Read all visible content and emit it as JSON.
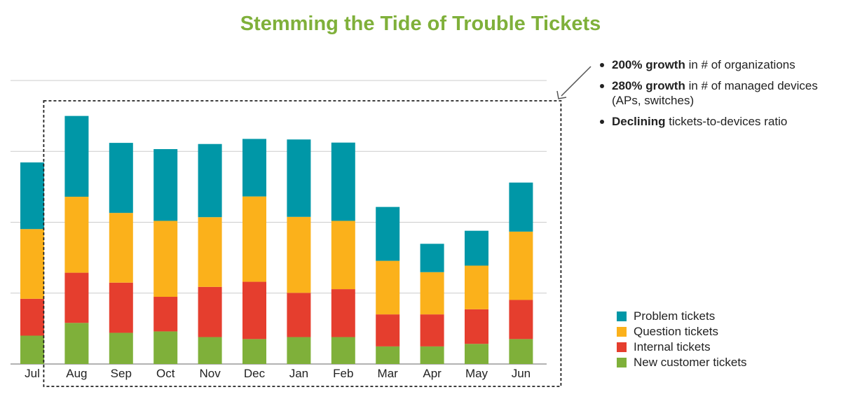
{
  "chart_data": {
    "type": "bar",
    "stacked": true,
    "title": "Stemming the Tide of Trouble Tickets",
    "xlabel": "",
    "ylabel": "",
    "ylim": [
      0,
      100
    ],
    "y_axis_labels_shown": false,
    "grid": true,
    "legend_position": "right",
    "categories": [
      "Jul",
      "Aug",
      "Sep",
      "Oct",
      "Nov",
      "Dec",
      "Jan",
      "Feb",
      "Mar",
      "Apr",
      "May",
      "Jun"
    ],
    "series": [
      {
        "name": "New customer tickets",
        "color": "#7fb03a",
        "values": [
          10,
          14.5,
          11,
          11.5,
          9.5,
          8.8,
          9.5,
          9.5,
          6.2,
          6.2,
          7.1,
          8.8
        ]
      },
      {
        "name": "Internal tickets",
        "color": "#e53e2e",
        "values": [
          13,
          17.7,
          17.7,
          12.2,
          17.7,
          20.2,
          15.6,
          16.9,
          11.3,
          11.3,
          12.2,
          13.8
        ]
      },
      {
        "name": "Question tickets",
        "color": "#fbb11b",
        "values": [
          24.6,
          26.8,
          24.6,
          26.8,
          24.6,
          30.1,
          26.8,
          24.1,
          18.9,
          14.9,
          15.4,
          24.1
        ]
      },
      {
        "name": "Problem tickets",
        "color": "#0097a7",
        "values": [
          23.5,
          28.5,
          24.7,
          25.3,
          25.8,
          20.3,
          27.3,
          27.6,
          19,
          10,
          12.3,
          17.3
        ]
      }
    ],
    "annotation_box": {
      "from_category": "Aug",
      "to_category": "Jun",
      "style": "dashed"
    },
    "annotations": [
      {
        "bold": "200% growth",
        "text": " in # of organizations"
      },
      {
        "bold": "280% growth",
        "text": " in # of managed devices (APs, switches)"
      },
      {
        "bold": "Declining",
        "text": " tickets-to-devices ratio"
      }
    ]
  },
  "legend": {
    "items": [
      {
        "label": "Problem tickets",
        "color": "#0097a7"
      },
      {
        "label": "Question tickets",
        "color": "#fbb11b"
      },
      {
        "label": "Internal tickets",
        "color": "#e53e2e"
      },
      {
        "label": "New customer tickets",
        "color": "#7fb03a"
      }
    ]
  }
}
